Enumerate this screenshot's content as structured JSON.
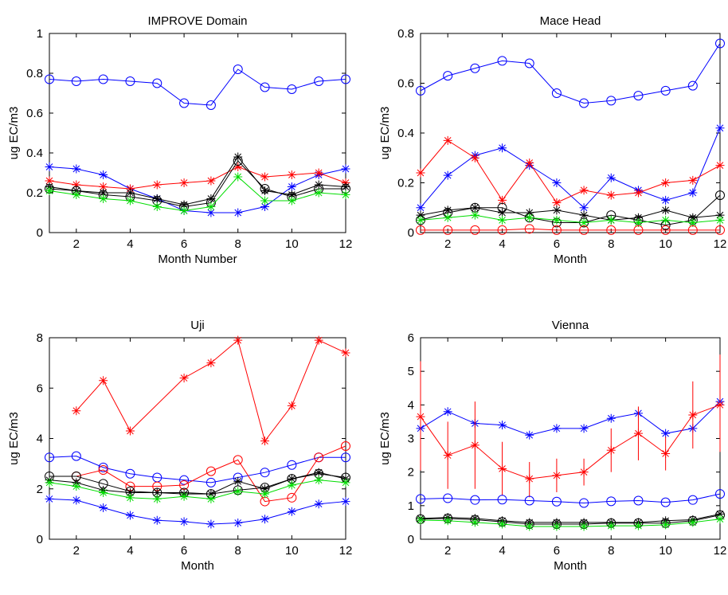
{
  "chart_data": [
    {
      "type": "line",
      "title": "IMPROVE Domain",
      "xlabel": "Month Number",
      "ylabel": "ug EC/m3",
      "xlim": [
        1,
        12
      ],
      "ylim": [
        0,
        1
      ],
      "xticks": [
        2,
        4,
        6,
        8,
        10,
        12
      ],
      "yticks": [
        0,
        0.2,
        0.4,
        0.6,
        0.8,
        1
      ],
      "yticklabels": [
        "0",
        "0.2",
        "0.4",
        "0.6",
        "0.8",
        "1"
      ],
      "series": [
        {
          "color": "#0000ff",
          "marker": "circle",
          "x": [
            1,
            2,
            3,
            4,
            5,
            6,
            7,
            8,
            9,
            10,
            11,
            12
          ],
          "y": [
            0.77,
            0.76,
            0.77,
            0.76,
            0.75,
            0.65,
            0.64,
            0.82,
            0.73,
            0.72,
            0.76,
            0.77
          ]
        },
        {
          "color": "#0000ff",
          "marker": "star",
          "x": [
            1,
            2,
            3,
            4,
            5,
            6,
            7,
            8,
            9,
            10,
            11,
            12
          ],
          "y": [
            0.33,
            0.32,
            0.29,
            0.22,
            0.17,
            0.11,
            0.1,
            0.1,
            0.13,
            0.23,
            0.29,
            0.32
          ]
        },
        {
          "color": "#ff0000",
          "marker": "star",
          "x": [
            1,
            2,
            3,
            4,
            5,
            6,
            7,
            8,
            9,
            10,
            11,
            12
          ],
          "y": [
            0.26,
            0.24,
            0.23,
            0.22,
            0.24,
            0.25,
            0.26,
            0.33,
            0.28,
            0.29,
            0.3,
            0.25
          ]
        },
        {
          "color": "#000000",
          "marker": "star",
          "x": [
            1,
            2,
            3,
            4,
            5,
            6,
            7,
            8,
            9,
            10,
            11,
            12
          ],
          "y": [
            0.23,
            0.21,
            0.2,
            0.2,
            0.17,
            0.14,
            0.17,
            0.38,
            0.21,
            0.19,
            0.24,
            0.23
          ]
        },
        {
          "color": "#000000",
          "marker": "circle",
          "x": [
            1,
            2,
            3,
            4,
            5,
            6,
            7,
            8,
            9,
            10,
            11,
            12
          ],
          "y": [
            0.22,
            0.21,
            0.19,
            0.18,
            0.16,
            0.13,
            0.15,
            0.36,
            0.22,
            0.18,
            0.22,
            0.22
          ]
        },
        {
          "color": "#00dd00",
          "marker": "star",
          "x": [
            1,
            2,
            3,
            4,
            5,
            6,
            7,
            8,
            9,
            10,
            11,
            12
          ],
          "y": [
            0.21,
            0.19,
            0.17,
            0.16,
            0.13,
            0.11,
            0.13,
            0.28,
            0.16,
            0.16,
            0.2,
            0.19
          ]
        }
      ]
    },
    {
      "type": "line",
      "title": "Mace Head",
      "xlabel": "Month",
      "ylabel": "ug EC/m3",
      "xlim": [
        1,
        12
      ],
      "ylim": [
        0,
        0.8
      ],
      "xticks": [
        2,
        4,
        6,
        8,
        10,
        12
      ],
      "yticks": [
        0,
        0.2,
        0.4,
        0.6,
        0.8
      ],
      "yticklabels": [
        "0",
        "0.2",
        "0.4",
        "0.6",
        "0.8"
      ],
      "series": [
        {
          "color": "#0000ff",
          "marker": "circle",
          "x": [
            1,
            2,
            3,
            4,
            5,
            6,
            7,
            8,
            9,
            10,
            11,
            12
          ],
          "y": [
            0.57,
            0.63,
            0.66,
            0.69,
            0.68,
            0.56,
            0.52,
            0.53,
            0.55,
            0.57,
            0.59,
            0.76
          ]
        },
        {
          "color": "#0000ff",
          "marker": "star",
          "x": [
            1,
            2,
            3,
            4,
            5,
            6,
            7,
            8,
            9,
            10,
            11,
            12
          ],
          "y": [
            0.1,
            0.23,
            0.31,
            0.34,
            0.27,
            0.2,
            0.1,
            0.22,
            0.17,
            0.13,
            0.16,
            0.42
          ]
        },
        {
          "color": "#ff0000",
          "marker": "star",
          "x": [
            1,
            2,
            3,
            4,
            5,
            6,
            7,
            8,
            9,
            10,
            11,
            12
          ],
          "y": [
            0.24,
            0.37,
            0.3,
            0.13,
            0.28,
            0.12,
            0.17,
            0.15,
            0.16,
            0.2,
            0.21,
            0.27
          ]
        },
        {
          "color": "#000000",
          "marker": "circle",
          "x": [
            1,
            2,
            3,
            4,
            5,
            6,
            7,
            8,
            9,
            10,
            11,
            12
          ],
          "y": [
            0.05,
            0.08,
            0.1,
            0.1,
            0.06,
            0.04,
            0.04,
            0.07,
            0.05,
            0.03,
            0.05,
            0.15
          ]
        },
        {
          "color": "#000000",
          "marker": "star",
          "x": [
            1,
            2,
            3,
            4,
            5,
            6,
            7,
            8,
            9,
            10,
            11,
            12
          ],
          "y": [
            0.07,
            0.09,
            0.1,
            0.08,
            0.08,
            0.09,
            0.07,
            0.05,
            0.06,
            0.09,
            0.06,
            0.07
          ]
        },
        {
          "color": "#00dd00",
          "marker": "star",
          "x": [
            1,
            2,
            3,
            4,
            5,
            6,
            7,
            8,
            9,
            10,
            11,
            12
          ],
          "y": [
            0.05,
            0.06,
            0.07,
            0.05,
            0.06,
            0.05,
            0.04,
            0.05,
            0.04,
            0.05,
            0.04,
            0.05
          ]
        },
        {
          "color": "#ff0000",
          "marker": "circle",
          "x": [
            1,
            2,
            3,
            4,
            5,
            6,
            7,
            8,
            9,
            10,
            11,
            12
          ],
          "y": [
            0.01,
            0.01,
            0.01,
            0.01,
            0.015,
            0.01,
            0.01,
            0.01,
            0.01,
            0.01,
            0.01,
            0.01
          ]
        }
      ]
    },
    {
      "type": "line",
      "title": "Uji",
      "xlabel": "Month",
      "ylabel": "ug EC/m3",
      "xlim": [
        1,
        12
      ],
      "ylim": [
        0,
        8
      ],
      "xticks": [
        2,
        4,
        6,
        8,
        10,
        12
      ],
      "yticks": [
        0,
        2,
        4,
        6,
        8
      ],
      "yticklabels": [
        "0",
        "2",
        "4",
        "6",
        "8"
      ],
      "series": [
        {
          "color": "#ff0000",
          "marker": "star",
          "x": [
            2,
            3,
            4,
            6,
            7,
            8,
            9,
            10,
            11,
            12
          ],
          "y": [
            5.1,
            6.3,
            4.3,
            6.4,
            7.0,
            7.9,
            3.9,
            5.3,
            7.9,
            7.4
          ]
        },
        {
          "color": "#0000ff",
          "marker": "circle",
          "x": [
            1,
            2,
            3,
            4,
            5,
            6,
            7,
            8,
            9,
            10,
            11,
            12
          ],
          "y": [
            3.25,
            3.3,
            2.85,
            2.6,
            2.45,
            2.35,
            2.25,
            2.45,
            2.65,
            2.95,
            3.25,
            3.25
          ]
        },
        {
          "color": "#ff0000",
          "marker": "circle",
          "x": [
            2,
            3,
            4,
            5,
            6,
            7,
            8,
            9,
            10,
            11,
            12
          ],
          "y": [
            2.5,
            2.75,
            2.1,
            2.1,
            2.15,
            2.7,
            3.15,
            1.5,
            1.65,
            3.25,
            3.7
          ]
        },
        {
          "color": "#000000",
          "marker": "circle",
          "x": [
            1,
            2,
            3,
            4,
            5,
            6,
            7,
            8,
            9,
            10,
            11,
            12
          ],
          "y": [
            2.5,
            2.5,
            2.2,
            1.9,
            1.85,
            1.85,
            1.8,
            1.95,
            2.05,
            2.4,
            2.6,
            2.45
          ]
        },
        {
          "color": "#000000",
          "marker": "star",
          "x": [
            1,
            2,
            3,
            4,
            5,
            6,
            7,
            8,
            9,
            10,
            11,
            12
          ],
          "y": [
            2.35,
            2.25,
            1.95,
            1.85,
            1.85,
            1.8,
            1.8,
            2.3,
            2.0,
            2.4,
            2.65,
            2.4
          ]
        },
        {
          "color": "#00dd00",
          "marker": "star",
          "x": [
            1,
            2,
            3,
            4,
            5,
            6,
            7,
            8,
            9,
            10,
            11,
            12
          ],
          "y": [
            2.25,
            2.1,
            1.85,
            1.65,
            1.6,
            1.7,
            1.6,
            1.9,
            1.8,
            2.15,
            2.35,
            2.25
          ]
        },
        {
          "color": "#0000ff",
          "marker": "star",
          "x": [
            1,
            2,
            3,
            4,
            5,
            6,
            7,
            8,
            9,
            10,
            11,
            12
          ],
          "y": [
            1.6,
            1.55,
            1.25,
            0.95,
            0.75,
            0.7,
            0.6,
            0.65,
            0.8,
            1.1,
            1.4,
            1.5
          ]
        }
      ]
    },
    {
      "type": "line",
      "title": "Vienna",
      "xlabel": "Month",
      "ylabel": "ug EC/m3",
      "xlim": [
        1,
        12
      ],
      "ylim": [
        0,
        6
      ],
      "xticks": [
        2,
        4,
        6,
        8,
        10,
        12
      ],
      "yticks": [
        0,
        1,
        2,
        3,
        4,
        5,
        6
      ],
      "yticklabels": [
        "0",
        "1",
        "2",
        "3",
        "4",
        "5",
        "6"
      ],
      "series": [
        {
          "color": "#0000ff",
          "marker": "star",
          "x": [
            1,
            2,
            3,
            4,
            5,
            6,
            7,
            8,
            9,
            10,
            11,
            12
          ],
          "y": [
            3.3,
            3.8,
            3.45,
            3.4,
            3.1,
            3.3,
            3.3,
            3.6,
            3.75,
            3.15,
            3.3,
            4.1
          ]
        },
        {
          "color": "#ff0000",
          "marker": "star",
          "x": [
            1,
            2,
            3,
            4,
            5,
            6,
            7,
            8,
            9,
            10,
            11,
            12
          ],
          "y": [
            3.65,
            2.5,
            2.8,
            2.1,
            1.8,
            1.9,
            2.0,
            2.65,
            3.15,
            2.55,
            3.7,
            4.0
          ],
          "error_low": [
            2.05,
            1.5,
            1.5,
            1.3,
            1.25,
            1.4,
            1.6,
            2.0,
            2.35,
            2.05,
            2.7,
            2.6
          ],
          "error_high": [
            5.3,
            3.5,
            4.1,
            2.9,
            2.3,
            2.4,
            2.4,
            3.3,
            3.95,
            3.05,
            4.7,
            5.5
          ]
        },
        {
          "color": "#0000ff",
          "marker": "circle",
          "x": [
            1,
            2,
            3,
            4,
            5,
            6,
            7,
            8,
            9,
            10,
            11,
            12
          ],
          "y": [
            1.2,
            1.22,
            1.17,
            1.18,
            1.15,
            1.12,
            1.08,
            1.13,
            1.15,
            1.1,
            1.17,
            1.35
          ]
        },
        {
          "color": "#000000",
          "marker": "circle",
          "x": [
            1,
            2,
            3,
            4,
            5,
            6,
            7,
            8,
            9,
            10,
            11,
            12
          ],
          "y": [
            0.6,
            0.62,
            0.58,
            0.52,
            0.45,
            0.45,
            0.45,
            0.48,
            0.48,
            0.48,
            0.55,
            0.72
          ]
        },
        {
          "color": "#000000",
          "marker": "star",
          "x": [
            1,
            2,
            3,
            4,
            5,
            6,
            7,
            8,
            9,
            10,
            11,
            12
          ],
          "y": [
            0.62,
            0.65,
            0.62,
            0.55,
            0.5,
            0.5,
            0.5,
            0.5,
            0.5,
            0.55,
            0.58,
            0.75
          ]
        },
        {
          "color": "#00dd00",
          "marker": "star",
          "x": [
            1,
            2,
            3,
            4,
            5,
            6,
            7,
            8,
            9,
            10,
            11,
            12
          ],
          "y": [
            0.57,
            0.55,
            0.5,
            0.45,
            0.38,
            0.38,
            0.38,
            0.4,
            0.4,
            0.43,
            0.5,
            0.6
          ]
        }
      ]
    }
  ]
}
